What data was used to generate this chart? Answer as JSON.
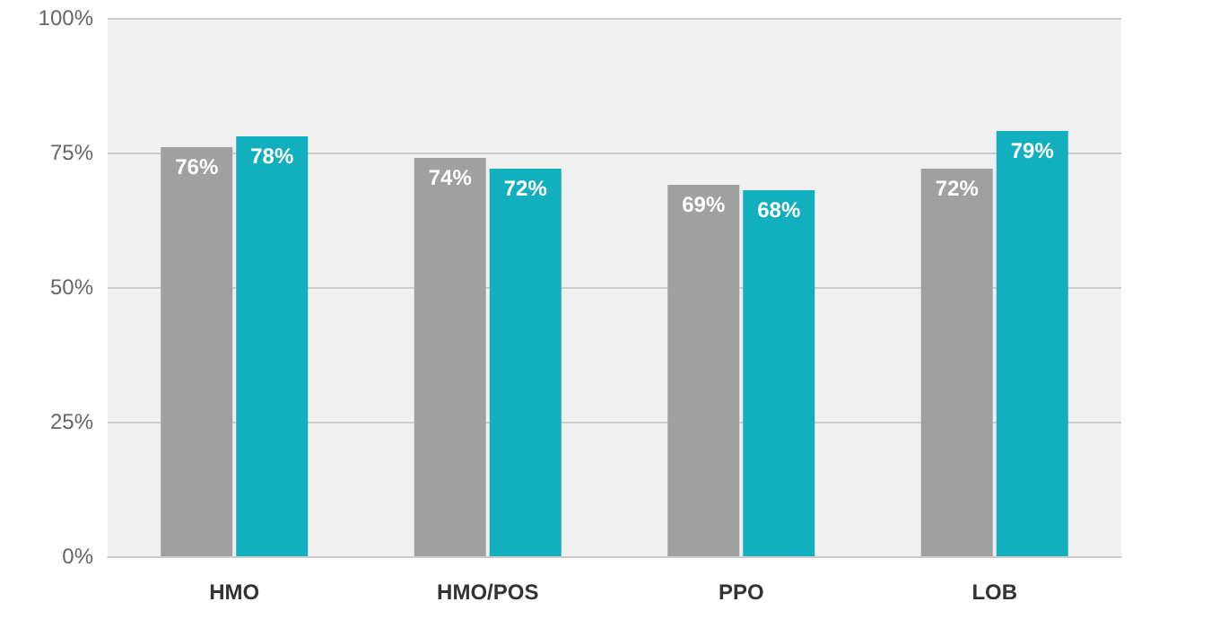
{
  "chart_data": {
    "type": "bar",
    "categories": [
      "HMO",
      "HMO/POS",
      "PPO",
      "LOB"
    ],
    "series": [
      {
        "color": "#a0a0a0",
        "values": [
          76,
          74,
          69,
          72
        ],
        "value_labels": [
          "76%",
          "74%",
          "69%",
          "72%"
        ]
      },
      {
        "color": "#12b0bf",
        "values": [
          78,
          72,
          68,
          79
        ],
        "value_labels": [
          "78%",
          "72%",
          "68%",
          "79%"
        ]
      }
    ],
    "ylim": [
      0,
      100
    ],
    "yticks": [
      {
        "value": 0,
        "label": "0%"
      },
      {
        "value": 25,
        "label": "25%"
      },
      {
        "value": 50,
        "label": "50%"
      },
      {
        "value": 75,
        "label": "75%"
      },
      {
        "value": 100,
        "label": "100%"
      }
    ],
    "grid": "y"
  }
}
